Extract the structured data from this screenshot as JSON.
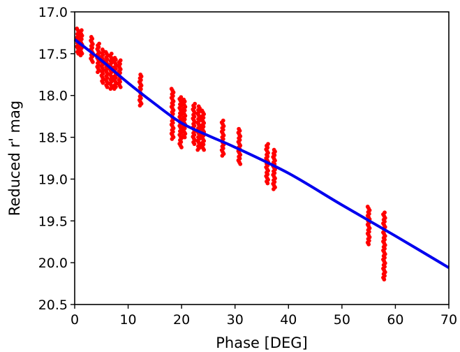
{
  "chart_data": {
    "type": "scatter",
    "xlabel": "Phase [DEG]",
    "ylabel": "Reduced r' mag",
    "xlim": [
      0,
      70
    ],
    "ylim": [
      20.5,
      17.0
    ],
    "y_inverted": true,
    "grid": false,
    "xticks": [
      0,
      10,
      20,
      30,
      40,
      50,
      60,
      70
    ],
    "yticks": [
      17.0,
      17.5,
      18.0,
      18.5,
      19.0,
      19.5,
      20.0,
      20.5
    ],
    "colors": {
      "points": "#ff0000",
      "fit": "#0000ee",
      "axes": "#000000"
    },
    "series": [
      {
        "kind": "points",
        "clusters": [
          {
            "x": 0.6,
            "y_min": 17.2,
            "y_max": 17.5
          },
          {
            "x": 1.2,
            "y_min": 17.22,
            "y_max": 17.52
          },
          {
            "x": 3.2,
            "y_min": 17.3,
            "y_max": 17.6
          },
          {
            "x": 4.4,
            "y_min": 17.38,
            "y_max": 17.72
          },
          {
            "x": 5.2,
            "y_min": 17.45,
            "y_max": 17.85
          },
          {
            "x": 6.0,
            "y_min": 17.48,
            "y_max": 17.9
          },
          {
            "x": 6.8,
            "y_min": 17.5,
            "y_max": 17.92
          },
          {
            "x": 7.6,
            "y_min": 17.55,
            "y_max": 17.92
          },
          {
            "x": 8.4,
            "y_min": 17.58,
            "y_max": 17.9
          },
          {
            "x": 12.3,
            "y_min": 17.75,
            "y_max": 18.12
          },
          {
            "x": 18.3,
            "y_min": 17.92,
            "y_max": 18.52
          },
          {
            "x": 19.8,
            "y_min": 18.02,
            "y_max": 18.62
          },
          {
            "x": 20.5,
            "y_min": 18.05,
            "y_max": 18.5
          },
          {
            "x": 22.3,
            "y_min": 18.1,
            "y_max": 18.58
          },
          {
            "x": 23.2,
            "y_min": 18.13,
            "y_max": 18.65
          },
          {
            "x": 24.0,
            "y_min": 18.18,
            "y_max": 18.65
          },
          {
            "x": 27.7,
            "y_min": 18.3,
            "y_max": 18.72
          },
          {
            "x": 30.8,
            "y_min": 18.4,
            "y_max": 18.82
          },
          {
            "x": 36.0,
            "y_min": 18.58,
            "y_max": 19.05
          },
          {
            "x": 37.3,
            "y_min": 18.65,
            "y_max": 19.12
          },
          {
            "x": 55.0,
            "y_min": 19.33,
            "y_max": 19.78
          },
          {
            "x": 57.9,
            "y_min": 19.4,
            "y_max": 20.2
          }
        ]
      },
      {
        "kind": "fit",
        "x": [
          0,
          5,
          10,
          15,
          20,
          25,
          30,
          40,
          50,
          60,
          70
        ],
        "y": [
          17.33,
          17.58,
          17.85,
          18.1,
          18.33,
          18.48,
          18.62,
          18.93,
          19.31,
          19.68,
          20.06
        ]
      }
    ]
  }
}
